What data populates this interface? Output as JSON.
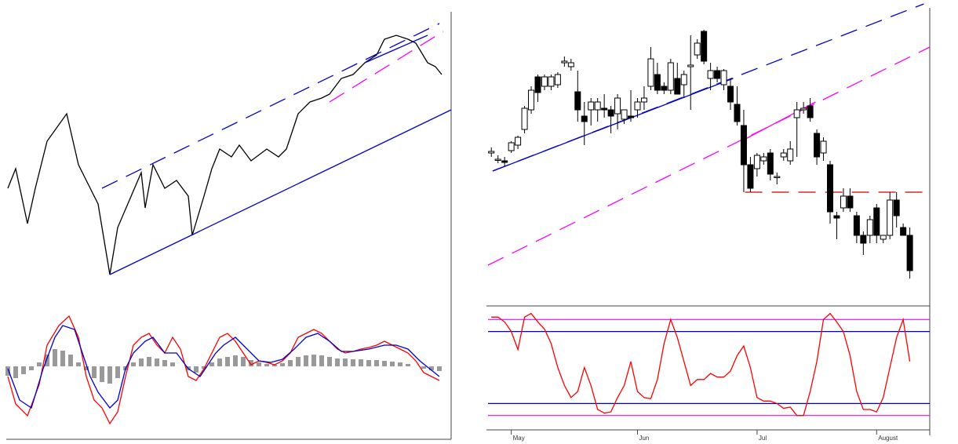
{
  "chart_data": [
    {
      "type": "line",
      "xlim": [
        0,
        553
      ],
      "ylim": [
        0,
        350
      ],
      "series": [
        {
          "color": "#000000",
          "dash": false,
          "x": [
            0,
            10,
            25,
            35,
            50,
            75,
            90,
            105,
            115,
            130,
            140,
            155,
            170,
            175,
            185,
            200,
            215,
            230,
            235,
            250,
            260,
            270,
            285,
            295,
            310,
            330,
            345,
            355,
            370,
            385,
            400,
            410,
            425,
            440,
            455,
            470,
            480,
            495,
            510,
            520,
            535,
            545,
            553
          ],
          "values": [
            130,
            155,
            85,
            130,
            190,
            225,
            160,
            130,
            110,
            20,
            80,
            115,
            150,
            105,
            160,
            130,
            140,
            120,
            70,
            120,
            155,
            180,
            170,
            185,
            165,
            180,
            170,
            180,
            225,
            240,
            245,
            250,
            270,
            275,
            290,
            300,
            320,
            325,
            320,
            315,
            290,
            285,
            275
          ]
        },
        {
          "color": "#0000cc",
          "dash": true,
          "x": [
            120,
            550
          ],
          "values": [
            130,
            340
          ]
        },
        {
          "color": "#0000cc",
          "dash": false,
          "x": [
            130,
            565
          ],
          "values": [
            20,
            230
          ]
        },
        {
          "color": "#ff00ff",
          "dash": true,
          "x": [
            410,
            555
          ],
          "values": [
            240,
            330
          ]
        },
        {
          "color": "#0000cc",
          "dash": false,
          "x": [
            455,
            535
          ],
          "values": [
            290,
            325
          ]
        }
      ]
    },
    {
      "type": "combo",
      "xlim": [
        0,
        553
      ],
      "ylim": [
        -88,
        87
      ],
      "series": [
        {
          "kind": "bar",
          "color": "#999999",
          "x": [
            0,
            10,
            20,
            30,
            40,
            50,
            60,
            70,
            80,
            90,
            100,
            110,
            120,
            130,
            140,
            150,
            160,
            170,
            180,
            190,
            200,
            210,
            220,
            230,
            240,
            250,
            260,
            270,
            280,
            290,
            300,
            310,
            320,
            330,
            340,
            350,
            360,
            370,
            380,
            390,
            400,
            410,
            420,
            430,
            440,
            450,
            460,
            470,
            480,
            490,
            500,
            510,
            520,
            530,
            540,
            550
          ],
          "values": [
            -12,
            -15,
            -10,
            -5,
            5,
            15,
            22,
            20,
            15,
            5,
            -5,
            -15,
            -20,
            -22,
            -15,
            -5,
            5,
            10,
            12,
            10,
            8,
            5,
            0,
            -5,
            -8,
            -3,
            5,
            10,
            12,
            14,
            12,
            8,
            5,
            3,
            2,
            4,
            8,
            12,
            14,
            15,
            14,
            12,
            10,
            10,
            9,
            9,
            8,
            8,
            7,
            6,
            5,
            3,
            0,
            -3,
            -5,
            -6
          ]
        },
        {
          "kind": "line",
          "color": "#ff0000",
          "x": [
            0,
            10,
            25,
            40,
            50,
            65,
            78,
            90,
            100,
            110,
            120,
            130,
            140,
            150,
            160,
            170,
            180,
            190,
            200,
            210,
            220,
            230,
            240,
            250,
            260,
            270,
            280,
            290,
            300,
            310,
            320,
            330,
            340,
            350,
            360,
            370,
            380,
            390,
            400,
            410,
            420,
            430,
            440,
            450,
            460,
            470,
            480,
            490,
            500,
            510,
            520,
            530,
            540,
            550
          ],
          "values": [
            -13,
            -48,
            -63,
            -23,
            27,
            52,
            64,
            37,
            -13,
            -43,
            -53,
            -73,
            -58,
            -13,
            27,
            37,
            42,
            27,
            17,
            37,
            22,
            -13,
            -18,
            -3,
            17,
            37,
            42,
            32,
            17,
            2,
            7,
            5,
            2,
            7,
            17,
            37,
            42,
            47,
            42,
            32,
            22,
            17,
            19,
            22,
            24,
            27,
            32,
            27,
            22,
            17,
            7,
            -8,
            -13,
            -18
          ]
        },
        {
          "kind": "line",
          "color": "#0000cc",
          "x": [
            0,
            15,
            30,
            45,
            60,
            70,
            85,
            95,
            105,
            115,
            130,
            140,
            150,
            160,
            175,
            185,
            200,
            215,
            230,
            245,
            255,
            265,
            275,
            290,
            305,
            320,
            335,
            350,
            365,
            380,
            395,
            410,
            425,
            440,
            460,
            480,
            495,
            510,
            525,
            540,
            550
          ],
          "values": [
            -3,
            -43,
            -53,
            -3,
            37,
            52,
            47,
            17,
            -13,
            -33,
            -53,
            -43,
            -3,
            17,
            32,
            37,
            17,
            17,
            -3,
            -13,
            2,
            17,
            27,
            37,
            22,
            7,
            5,
            9,
            22,
            37,
            42,
            32,
            19,
            19,
            22,
            27,
            27,
            22,
            7,
            -5,
            -13
          ]
        }
      ]
    },
    {
      "type": "candlestick",
      "xlim": [
        -0.5,
        66
      ],
      "ylim": [
        20,
        385
      ],
      "up_color": "#ffffff",
      "down_color": "#000000",
      "open": [
        205,
        197,
        195,
        208,
        215,
        235,
        260,
        302,
        290,
        290,
        292,
        320,
        315,
        283,
        252,
        260,
        260,
        262,
        260,
        255,
        248,
        252,
        260,
        270,
        290,
        305,
        290,
        285,
        300,
        292,
        315,
        330,
        360,
        300,
        310,
        292,
        290,
        267,
        240,
        190,
        185,
        195,
        205,
        175,
        200,
        195,
        250,
        260,
        265,
        230,
        205,
        190,
        125,
        135,
        150,
        125,
        100,
        100,
        135,
        95,
        100,
        145,
        110,
        100
      ],
      "close": [
        207,
        197,
        193,
        218,
        225,
        262,
        285,
        282,
        302,
        302,
        305,
        322,
        320,
        260,
        245,
        270,
        270,
        260,
        252,
        275,
        260,
        250,
        270,
        275,
        325,
        285,
        285,
        320,
        280,
        305,
        317,
        345,
        322,
        310,
        300,
        310,
        270,
        245,
        190,
        160,
        202,
        200,
        178,
        175,
        205,
        210,
        260,
        262,
        250,
        200,
        220,
        130,
        122,
        150,
        135,
        100,
        90,
        120,
        100,
        100,
        145,
        125,
        100,
        55
      ],
      "high": [
        212,
        202,
        200,
        220,
        227,
        265,
        290,
        305,
        305,
        305,
        308,
        328,
        325,
        310,
        270,
        275,
        275,
        280,
        265,
        280,
        260,
        285,
        275,
        290,
        340,
        320,
        295,
        325,
        320,
        310,
        355,
        350,
        362,
        320,
        315,
        312,
        300,
        290,
        260,
        200,
        205,
        205,
        210,
        180,
        210,
        220,
        270,
        270,
        275,
        235,
        225,
        195,
        130,
        160,
        160,
        130,
        105,
        125,
        140,
        100,
        155,
        155,
        115,
        110
      ],
      "low": [
        200,
        192,
        188,
        205,
        210,
        230,
        255,
        270,
        285,
        285,
        288,
        315,
        310,
        245,
        215,
        240,
        245,
        250,
        230,
        235,
        242,
        245,
        250,
        260,
        285,
        280,
        280,
        280,
        280,
        275,
        260,
        325,
        318,
        285,
        295,
        285,
        260,
        240,
        155,
        155,
        175,
        190,
        170,
        165,
        195,
        190,
        200,
        255,
        245,
        190,
        195,
        115,
        95,
        130,
        130,
        90,
        75,
        90,
        90,
        90,
        95,
        110,
        100,
        45
      ],
      "lines": [
        {
          "color": "#0000cc",
          "dash": true,
          "x": [
            0.2,
            65.1
          ],
          "values": [
            182,
            395
          ]
        },
        {
          "color": "#0000cc",
          "dash": false,
          "x": [
            0.2,
            36.4
          ],
          "values": [
            182,
            300
          ]
        },
        {
          "color": "#ff00ff",
          "dash": true,
          "x": [
            -0.5,
            66
          ],
          "values": [
            62,
            340
          ]
        },
        {
          "color": "#ff00ff",
          "dash": false,
          "x": [
            37.6,
            48.8
          ],
          "values": [
            220,
            270
          ]
        },
        {
          "color": "#cc0000",
          "dash": true,
          "x": [
            38.2,
            65.1
          ],
          "values": [
            155,
            155
          ]
        }
      ]
    },
    {
      "type": "line",
      "xlim": [
        -0.5,
        66
      ],
      "ylim": [
        0,
        100
      ],
      "levels": [
        {
          "value": 90,
          "color": "#ff00ff"
        },
        {
          "value": 80,
          "color": "#0000cc"
        },
        {
          "value": 20,
          "color": "#0000cc"
        },
        {
          "value": 10,
          "color": "#ff00ff"
        }
      ],
      "xticks": [
        {
          "value": 3,
          "label": "May"
        },
        {
          "value": 22,
          "label": "Jun"
        },
        {
          "value": 40,
          "label": "Jul"
        },
        {
          "value": 58,
          "label": "August"
        }
      ],
      "series": [
        {
          "color": "#ff0000",
          "values": [
            92,
            92,
            88,
            80,
            65,
            92,
            95,
            88,
            82,
            70,
            50,
            35,
            25,
            30,
            50,
            35,
            15,
            12,
            13,
            25,
            35,
            55,
            30,
            25,
            24,
            40,
            70,
            90,
            75,
            55,
            35,
            40,
            40,
            45,
            42,
            42,
            47,
            60,
            68,
            50,
            25,
            22,
            22,
            20,
            16,
            17,
            10,
            10,
            30,
            55,
            90,
            95,
            88,
            80,
            60,
            30,
            15,
            15,
            13,
            25,
            50,
            75,
            90,
            55
          ]
        }
      ]
    }
  ]
}
